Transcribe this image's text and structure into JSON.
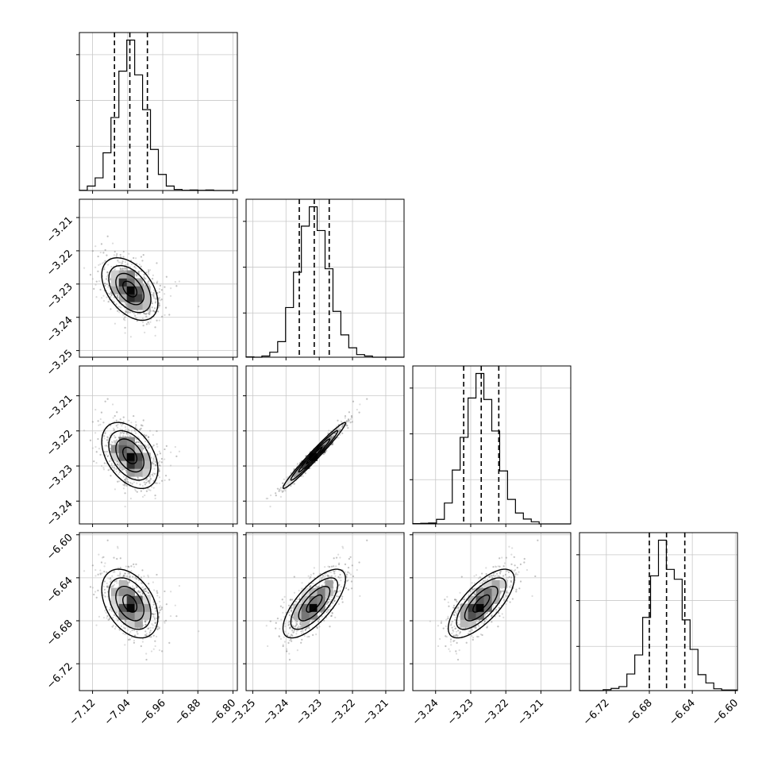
{
  "chart_data": {
    "type": "corner",
    "parameters": [
      {
        "range": [
          -7.15,
          -6.79
        ],
        "ticks": [
          -7.12,
          -7.04,
          -6.96,
          -6.88,
          -6.8
        ],
        "tick_labels": [
          "−7.12",
          "−7.04",
          "−6.96",
          "−6.88",
          "−6.80"
        ],
        "quantiles": [
          -7.07,
          -7.035,
          -6.995
        ],
        "mean": -7.035,
        "std": 0.032
      },
      {
        "range": [
          -3.252,
          -3.2045
        ],
        "ticks": [
          -3.25,
          -3.24,
          -3.23,
          -3.22,
          -3.21
        ],
        "tick_labels": [
          "−3.25",
          "−3.24",
          "−3.23",
          "−3.22",
          "−3.21"
        ],
        "quantiles": [
          -3.236,
          -3.2315,
          -3.227
        ],
        "mean": -3.2315,
        "std": 0.0047
      },
      {
        "range": [
          -3.2465,
          -3.2015
        ],
        "ticks": [
          -3.24,
          -3.23,
          -3.22,
          -3.21
        ],
        "tick_labels": [
          "−3.24",
          "−3.23",
          "−3.22",
          "−3.21"
        ],
        "quantiles": [
          -3.232,
          -3.227,
          -3.222
        ],
        "mean": -3.227,
        "std": 0.0047
      },
      {
        "range": [
          -6.745,
          -6.598
        ],
        "ticks": [
          -6.72,
          -6.68,
          -6.64,
          -6.6
        ],
        "tick_labels": [
          "−6.72",
          "−6.68",
          "−6.64",
          "−6.60"
        ],
        "quantiles": [
          -6.68,
          -6.664,
          -6.647
        ],
        "mean": -6.664,
        "std": 0.016
      }
    ],
    "correlation": [
      [
        1.0,
        -0.45,
        -0.42,
        -0.4
      ],
      [
        -0.45,
        1.0,
        0.98,
        0.72
      ],
      [
        -0.42,
        0.98,
        1.0,
        0.72
      ],
      [
        -0.4,
        0.72,
        0.72,
        1.0
      ]
    ],
    "contour_sigmas": [
      0.5,
      1.0,
      1.5,
      2.0
    ],
    "bins": 20,
    "grid": true
  }
}
